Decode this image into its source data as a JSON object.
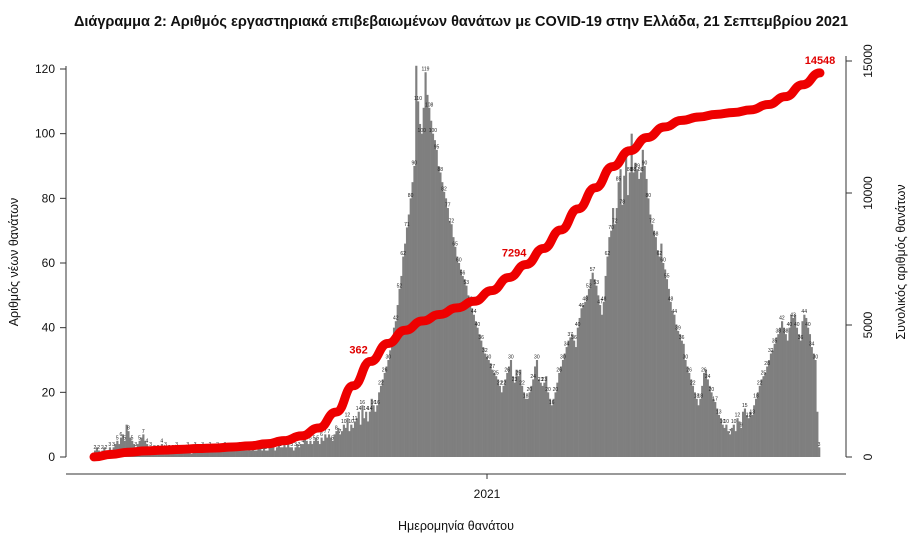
{
  "chart_data": {
    "type": "bar",
    "title": "Διάγραμμα 2: Αριθμός εργαστηριακά επιβεβαιωμένων θανάτων με COVID-19 στην Ελλάδα, 21 Σεπτεμβρίου 2021",
    "xlabel": "Ημερομηνία θανάτου",
    "ylabel": "Αριθμός νέων θανάτων",
    "y2label": "Συνολικός αριθμός θανάτων",
    "x_tick_labels": [
      "2021"
    ],
    "ylim": [
      0,
      120
    ],
    "y_ticks": [
      0,
      20,
      40,
      60,
      80,
      100,
      120
    ],
    "y2lim": [
      0,
      15000
    ],
    "y2_ticks": [
      0,
      5000,
      10000,
      15000
    ],
    "colors": {
      "bars": "#7f7f7f",
      "cumulative_line": "#ee0000"
    },
    "series": [
      {
        "name": "Αριθμός νέων θανάτων",
        "type": "bar",
        "values": [
          2,
          3,
          2,
          1,
          2,
          3,
          2,
          2,
          3,
          2,
          3,
          4,
          5,
          4,
          6,
          7,
          5,
          10,
          8,
          6,
          5,
          4,
          3,
          4,
          5,
          6,
          7,
          5,
          4,
          3,
          3,
          3,
          2,
          3,
          2,
          3,
          4,
          2,
          3,
          3,
          2,
          3,
          2,
          2,
          3,
          2,
          2,
          3,
          2,
          2,
          3,
          2,
          1,
          2,
          3,
          2,
          2,
          2,
          3,
          2,
          2,
          2,
          3,
          2,
          2,
          2,
          3,
          2,
          2,
          2,
          3,
          2,
          2,
          3,
          2,
          2,
          2,
          2,
          3,
          2,
          3,
          2,
          2,
          3,
          2,
          3,
          2,
          2,
          3,
          3,
          2,
          3,
          2,
          2,
          3,
          3,
          3,
          2,
          3,
          4,
          3,
          3,
          4,
          3,
          4,
          3,
          3,
          2,
          3,
          4,
          3,
          4,
          4,
          8,
          5,
          4,
          5,
          4,
          5,
          6,
          5,
          4,
          6,
          5,
          7,
          6,
          7,
          6,
          5,
          7,
          8,
          9,
          7,
          8,
          10,
          9,
          12,
          8,
          10,
          9,
          11,
          12,
          14,
          10,
          16,
          12,
          14,
          11,
          14,
          18,
          16,
          14,
          16,
          20,
          22,
          24,
          26,
          28,
          30,
          33,
          35,
          40,
          42,
          47,
          52,
          56,
          62,
          66,
          71,
          75,
          80,
          85,
          90,
          121,
          110,
          103,
          100,
          108,
          119,
          112,
          108,
          104,
          100,
          98,
          95,
          90,
          88,
          85,
          82,
          80,
          77,
          73,
          72,
          68,
          65,
          62,
          60,
          58,
          56,
          55,
          53,
          50,
          48,
          46,
          44,
          42,
          40,
          38,
          36,
          34,
          32,
          31,
          30,
          29,
          27,
          26,
          25,
          24,
          22,
          20,
          22,
          24,
          26,
          28,
          30,
          25,
          23,
          27,
          25,
          27,
          22,
          20,
          18,
          18,
          20,
          22,
          24,
          28,
          30,
          24,
          23,
          22,
          23,
          25,
          20,
          18,
          16,
          18,
          20,
          23,
          26,
          28,
          30,
          32,
          34,
          36,
          37,
          38,
          36,
          34,
          40,
          43,
          46,
          47,
          48,
          50,
          52,
          55,
          57,
          55,
          53,
          50,
          47,
          44,
          48,
          56,
          62,
          68,
          70,
          77,
          72,
          77,
          85,
          89,
          78,
          87,
          93,
          81,
          88,
          100,
          88,
          91,
          89,
          86,
          88,
          95,
          90,
          86,
          80,
          75,
          72,
          70,
          68,
          64,
          62,
          66,
          60,
          58,
          55,
          52,
          48,
          45,
          44,
          41,
          39,
          38,
          36,
          35,
          30,
          28,
          26,
          24,
          22,
          20,
          18,
          16,
          18,
          22,
          26,
          27,
          24,
          22,
          20,
          18,
          17,
          15,
          13,
          12,
          10,
          9,
          10,
          8,
          7,
          9,
          10,
          8,
          12,
          11,
          9,
          14,
          15,
          13,
          12,
          14,
          13,
          16,
          18,
          20,
          22,
          24,
          25,
          26,
          28,
          30,
          32,
          33,
          35,
          37,
          38,
          40,
          42,
          40,
          38,
          36,
          40,
          44,
          43,
          44,
          40,
          38,
          36,
          42,
          44,
          43,
          40,
          38,
          34,
          32,
          30,
          14,
          3
        ]
      },
      {
        "name": "Συνολικός αριθμός θανάτων",
        "type": "line",
        "values": [
          3,
          100,
          180,
          230,
          260,
          290,
          320,
          340,
          380,
          420,
          500,
          620,
          800,
          1100,
          1700,
          2700,
          3620,
          4300,
          4800,
          5150,
          5400,
          5650,
          5900,
          6300,
          6800,
          7294,
          7900,
          8600,
          9400,
          10200,
          11000,
          11600,
          12100,
          12500,
          12750,
          12880,
          12980,
          13050,
          13150,
          13350,
          13650,
          14100,
          14548
        ]
      }
    ],
    "cumulative_labels": [
      "362",
      "7294",
      "14548"
    ]
  }
}
